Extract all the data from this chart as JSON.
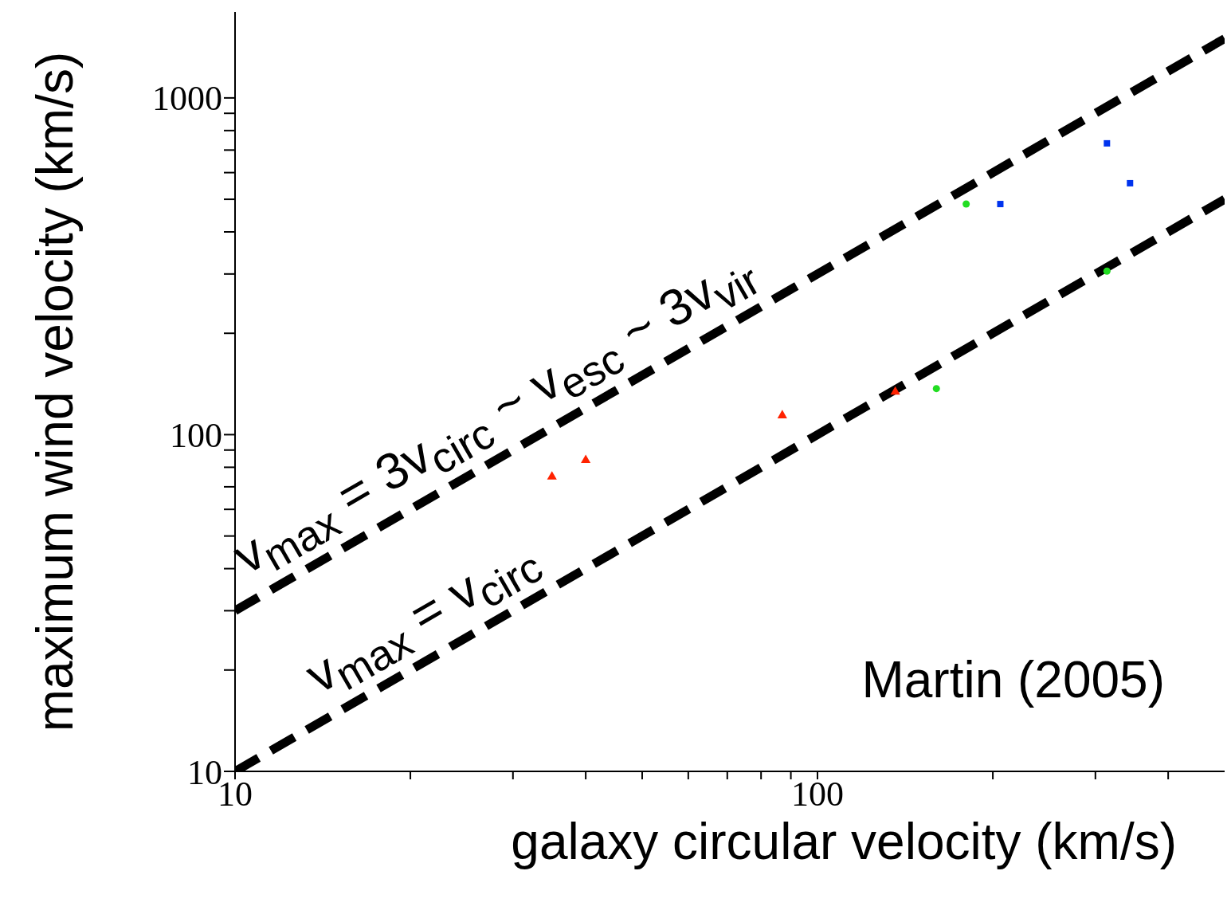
{
  "chart_data": {
    "type": "scatter",
    "xlabel": "galaxy circular velocity (km/s)",
    "ylabel": "maximum wind velocity (km/s)",
    "log": "xy",
    "grid": false,
    "legend": false,
    "xlim": [
      10,
      500
    ],
    "ylim": [
      10,
      1800
    ],
    "xticks": [
      10,
      {
        "value": 20,
        "label": null
      },
      {
        "value": 30,
        "label": null
      },
      {
        "value": 40,
        "label": null
      },
      {
        "value": 50,
        "label": null
      },
      {
        "value": 60,
        "label": null
      },
      {
        "value": 70,
        "label": null
      },
      {
        "value": 80,
        "label": null
      },
      {
        "value": 90,
        "label": null
      },
      100,
      {
        "value": 200,
        "label": null
      },
      {
        "value": 300,
        "label": null
      },
      {
        "value": 400,
        "label": null
      }
    ],
    "yticks": [
      10,
      {
        "value": 20,
        "label": null
      },
      {
        "value": 30,
        "label": null
      },
      {
        "value": 40,
        "label": null
      },
      {
        "value": 50,
        "label": null
      },
      {
        "value": 60,
        "label": null
      },
      {
        "value": 70,
        "label": null
      },
      {
        "value": 80,
        "label": null
      },
      {
        "value": 90,
        "label": null
      },
      100,
      {
        "value": 200,
        "label": null
      },
      {
        "value": 300,
        "label": null
      },
      {
        "value": 400,
        "label": null
      },
      {
        "value": 500,
        "label": null
      },
      {
        "value": 600,
        "label": null
      },
      {
        "value": 700,
        "label": null
      },
      {
        "value": 800,
        "label": null
      },
      {
        "value": 900,
        "label": null
      },
      1000
    ],
    "series": [
      {
        "type": "line",
        "color": "#000000",
        "line_style": "dashed",
        "marker": "none",
        "x": [
          10,
          500
        ],
        "values": [
          30,
          1500
        ]
      },
      {
        "type": "line",
        "color": "#000000",
        "line_style": "dashed",
        "marker": "none",
        "x": [
          10,
          500
        ],
        "values": [
          10,
          500
        ]
      },
      {
        "type": "scatter",
        "color": "#ff2200",
        "marker": "triangle",
        "x": [
          35,
          40,
          87,
          136
        ],
        "values": [
          75,
          84,
          114,
          134
        ]
      },
      {
        "type": "scatter",
        "color": "#22dd22",
        "marker": "circle",
        "x": [
          160,
          180,
          314
        ],
        "values": [
          137,
          484,
          306
        ]
      },
      {
        "type": "scatter",
        "color": "#0033ee",
        "marker": "square",
        "x": [
          206,
          314,
          344
        ],
        "values": [
          484,
          733,
          558
        ]
      }
    ],
    "annotations": [
      "v$_{max}$ = 3v$_{circ}$ ~ v$_{esc}$ ~ 3v$_{vir}$",
      "v$_{max}$ = v$_{circ}$",
      "Martin (2005)"
    ]
  }
}
